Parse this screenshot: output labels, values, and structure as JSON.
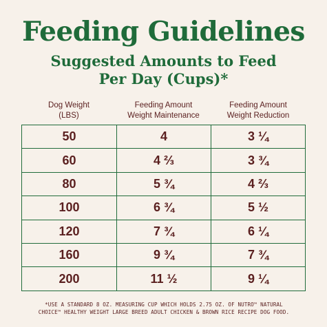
{
  "title": "Feeding Guidelines",
  "subtitle_line1": "Suggested Amounts to Feed",
  "subtitle_line2": "Per Day (Cups)*",
  "columns": [
    {
      "line1": "Dog Weight",
      "line2": "(LBS)"
    },
    {
      "line1": "Feeding Amount",
      "line2": "Weight Maintenance"
    },
    {
      "line1": "Feeding Amount",
      "line2": "Weight Reduction"
    }
  ],
  "rows": [
    [
      "50",
      "4",
      "3 ¼"
    ],
    [
      "60",
      "4 ⅔",
      "3 ¾"
    ],
    [
      "80",
      "5 ¾",
      "4 ⅔"
    ],
    [
      "100",
      "6 ¾",
      "5 ½"
    ],
    [
      "120",
      "7 ¾",
      "6 ¼"
    ],
    [
      "160",
      "9 ¾",
      "7 ¾"
    ],
    [
      "200",
      "11 ½",
      "9 ¼"
    ]
  ],
  "footnote_line1": "*USE A STANDARD 8 OZ. MEASURING CUP WHICH HOLDS 2.75 OZ. OF NUTRO™ NATURAL",
  "footnote_line2": "CHOICE™ HEALTHY WEIGHT LARGE BREED ADULT CHICKEN & BROWN RICE RECIPE DOG FOOD.",
  "colors": {
    "background": "#f7f1ea",
    "title_green": "#1f6b3a",
    "text_maroon": "#5a1f1f"
  }
}
